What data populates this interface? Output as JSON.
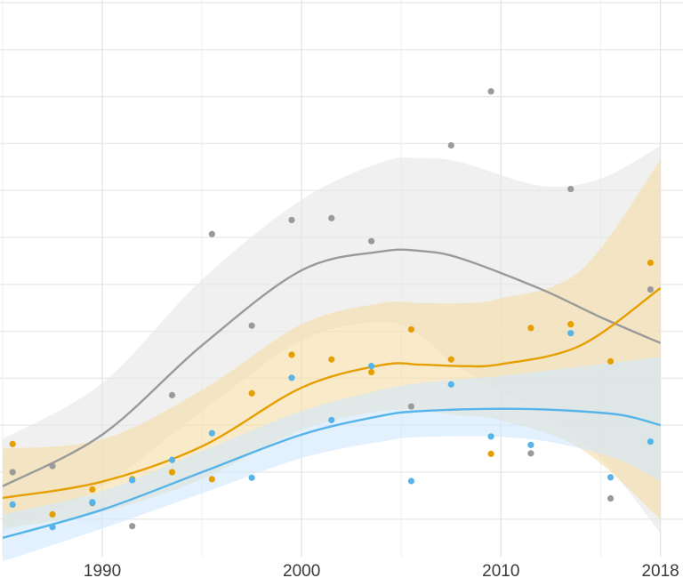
{
  "chart_data": {
    "type": "scatter",
    "title": "",
    "xlabel": "",
    "ylabel": "",
    "xlim": [
      1985,
      2019
    ],
    "ylim": [
      -0.18,
      1.0
    ],
    "x_ticks": [
      1990,
      2000,
      2010,
      2018
    ],
    "x_tick_labels": [
      "1990",
      "2000",
      "2010",
      "2018"
    ],
    "x_minor_ticks": [
      1985,
      1995,
      2005,
      2015
    ],
    "y_gridlines": [
      -0.1,
      0.0,
      0.1,
      0.2,
      0.3,
      0.4,
      0.5,
      0.6,
      0.7,
      0.8,
      0.9,
      1.0
    ],
    "grid": true,
    "legend": "none",
    "series": [
      {
        "color": "#9a9a9a",
        "band_color": "#e6e6e6",
        "points": [
          [
            1985.5,
            0.0
          ],
          [
            1987.5,
            0.013
          ],
          [
            1989.5,
            -0.066
          ],
          [
            1991.5,
            -0.115
          ],
          [
            1993.5,
            0.164
          ],
          [
            1995.5,
            0.507
          ],
          [
            1997.5,
            0.312
          ],
          [
            1999.5,
            0.537
          ],
          [
            2001.5,
            0.541
          ],
          [
            2003.5,
            0.492
          ],
          [
            2005.5,
            0.14
          ],
          [
            2007.5,
            0.696
          ],
          [
            2009.5,
            0.811
          ],
          [
            2011.5,
            0.04
          ],
          [
            2013.5,
            0.603
          ],
          [
            2015.5,
            -0.056
          ],
          [
            2017.5,
            0.389
          ]
        ],
        "fit": [
          [
            1985,
            -0.03
          ],
          [
            1990,
            0.08
          ],
          [
            1995,
            0.27
          ],
          [
            2000,
            0.43
          ],
          [
            2004,
            0.47
          ],
          [
            2006,
            0.471
          ],
          [
            2008,
            0.455
          ],
          [
            2012,
            0.39
          ],
          [
            2015,
            0.33
          ],
          [
            2018,
            0.275
          ]
        ],
        "band_upper": [
          [
            1985,
            0.07
          ],
          [
            1990,
            0.19
          ],
          [
            1995,
            0.41
          ],
          [
            2000,
            0.58
          ],
          [
            2004,
            0.66
          ],
          [
            2006,
            0.669
          ],
          [
            2008,
            0.66
          ],
          [
            2012,
            0.61
          ],
          [
            2015,
            0.625
          ],
          [
            2018,
            0.695
          ]
        ],
        "band_lower": [
          [
            1985,
            -0.13
          ],
          [
            1990,
            -0.03
          ],
          [
            1995,
            0.13
          ],
          [
            2000,
            0.28
          ],
          [
            2004,
            0.32
          ],
          [
            2006,
            0.29
          ],
          [
            2008,
            0.22
          ],
          [
            2012,
            0.13
          ],
          [
            2015,
            0.03
          ],
          [
            2018,
            -0.13
          ]
        ]
      },
      {
        "color": "#e69f00",
        "band_color": "#f6dfa8",
        "points": [
          [
            1985.5,
            0.06
          ],
          [
            1987.5,
            -0.09
          ],
          [
            1989.5,
            -0.037
          ],
          [
            1991.5,
            -0.015
          ],
          [
            1993.5,
            0.0
          ],
          [
            1995.5,
            -0.015
          ],
          [
            1997.5,
            0.168
          ],
          [
            1999.5,
            0.25
          ],
          [
            2001.5,
            0.24
          ],
          [
            2003.5,
            0.213
          ],
          [
            2005.5,
            0.304
          ],
          [
            2007.5,
            0.24
          ],
          [
            2009.5,
            0.039
          ],
          [
            2011.5,
            0.307
          ],
          [
            2013.5,
            0.315
          ],
          [
            2015.5,
            0.236
          ],
          [
            2017.5,
            0.446
          ]
        ],
        "fit": [
          [
            1985,
            -0.055
          ],
          [
            1990,
            -0.02
          ],
          [
            1995,
            0.055
          ],
          [
            2000,
            0.18
          ],
          [
            2004,
            0.228
          ],
          [
            2006,
            0.229
          ],
          [
            2008,
            0.226
          ],
          [
            2010,
            0.23
          ],
          [
            2014,
            0.27
          ],
          [
            2018,
            0.392
          ]
        ],
        "band_upper": [
          [
            1985,
            0.05
          ],
          [
            1990,
            0.07
          ],
          [
            1995,
            0.175
          ],
          [
            2000,
            0.315
          ],
          [
            2004,
            0.36
          ],
          [
            2006,
            0.36
          ],
          [
            2008,
            0.36
          ],
          [
            2010,
            0.37
          ],
          [
            2014,
            0.43
          ],
          [
            2018,
            0.665
          ]
        ],
        "band_lower": [
          [
            1985,
            -0.12
          ],
          [
            1990,
            -0.085
          ],
          [
            1995,
            -0.015
          ],
          [
            2000,
            0.09
          ],
          [
            2004,
            0.13
          ],
          [
            2006,
            0.13
          ],
          [
            2008,
            0.12
          ],
          [
            2010,
            0.11
          ],
          [
            2014,
            0.05
          ],
          [
            2018,
            -0.1
          ]
        ]
      },
      {
        "color": "#56b4e9",
        "band_color": "#d1e9fb",
        "points": [
          [
            1985.5,
            -0.069
          ],
          [
            1987.5,
            -0.117
          ],
          [
            1989.5,
            -0.064
          ],
          [
            1991.5,
            -0.017
          ],
          [
            1993.5,
            0.026
          ],
          [
            1995.5,
            0.083
          ],
          [
            1997.5,
            -0.012
          ],
          [
            1999.5,
            0.201
          ],
          [
            2001.5,
            0.111
          ],
          [
            2003.5,
            0.226
          ],
          [
            2005.5,
            -0.019
          ],
          [
            2007.5,
            0.187
          ],
          [
            2009.5,
            0.076
          ],
          [
            2011.5,
            0.058
          ],
          [
            2013.5,
            0.296
          ],
          [
            2015.5,
            -0.011
          ],
          [
            2017.5,
            0.065
          ]
        ],
        "fit": [
          [
            1985,
            -0.14
          ],
          [
            1990,
            -0.08
          ],
          [
            1995,
            0.0
          ],
          [
            2000,
            0.08
          ],
          [
            2004,
            0.12
          ],
          [
            2006,
            0.13
          ],
          [
            2010,
            0.135
          ],
          [
            2013,
            0.132
          ],
          [
            2016,
            0.122
          ],
          [
            2018,
            0.1
          ]
        ],
        "band_upper": [
          [
            1985,
            -0.09
          ],
          [
            1990,
            -0.04
          ],
          [
            1995,
            0.045
          ],
          [
            2000,
            0.13
          ],
          [
            2004,
            0.175
          ],
          [
            2006,
            0.19
          ],
          [
            2010,
            0.205
          ],
          [
            2013,
            0.22
          ],
          [
            2016,
            0.235
          ],
          [
            2018,
            0.245
          ]
        ],
        "band_lower": [
          [
            1985,
            -0.19
          ],
          [
            1990,
            -0.12
          ],
          [
            1995,
            -0.045
          ],
          [
            2000,
            0.03
          ],
          [
            2004,
            0.065
          ],
          [
            2006,
            0.075
          ],
          [
            2010,
            0.075
          ],
          [
            2013,
            0.06
          ],
          [
            2016,
            0.025
          ],
          [
            2018,
            -0.02
          ]
        ]
      }
    ]
  }
}
